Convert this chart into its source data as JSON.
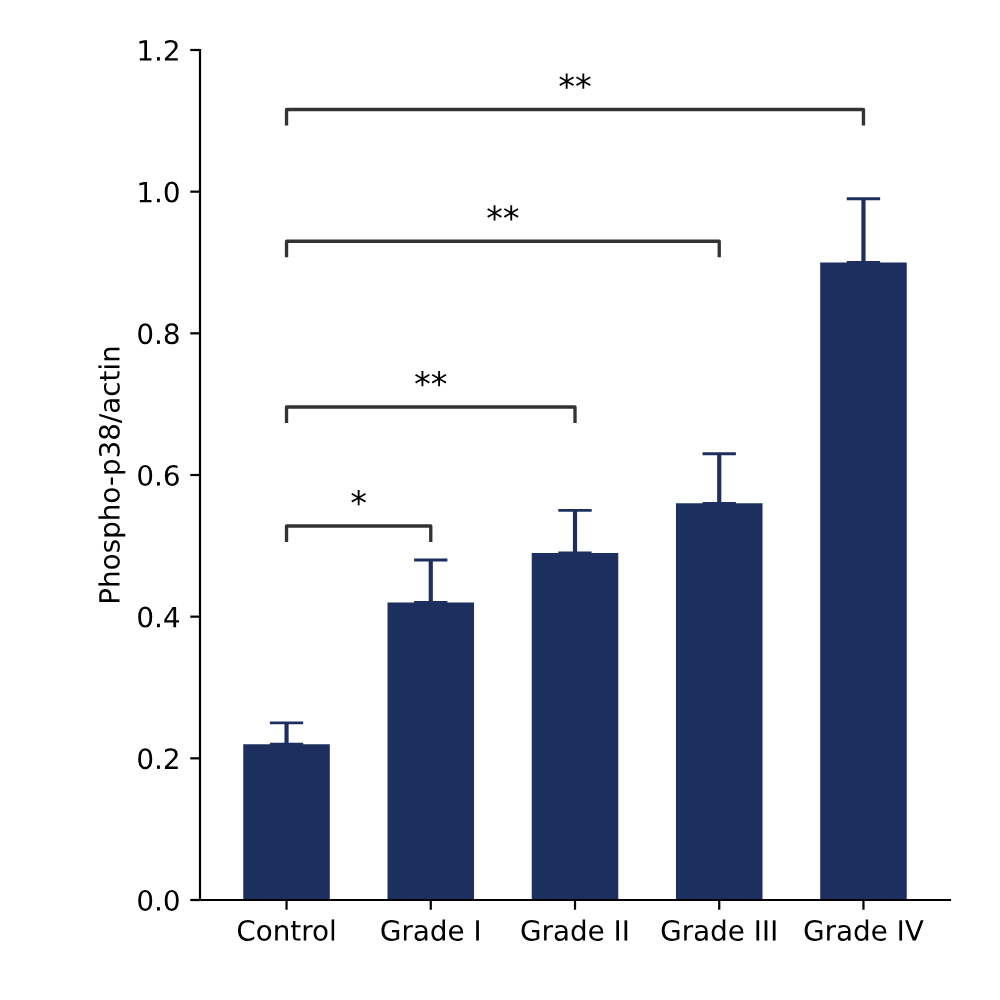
{
  "chart_data": {
    "type": "bar",
    "ylabel": "Phospho-p38/actin",
    "categories": [
      "Control",
      "Grade I",
      "Grade II",
      "Grade III",
      "Grade IV"
    ],
    "values": [
      0.22,
      0.42,
      0.49,
      0.56,
      0.9
    ],
    "errors": [
      [
        0.22,
        0.25
      ],
      [
        0.42,
        0.48
      ],
      [
        0.49,
        0.55
      ],
      [
        0.56,
        0.63
      ],
      [
        0.9,
        0.99
      ]
    ],
    "color": "#1c2f5e",
    "ylim": [
      0,
      1.2
    ],
    "yticks": [
      {
        "value": 0,
        "label": "0.0"
      },
      0.2,
      0.4,
      0.6,
      0.8,
      {
        "value": 1,
        "label": "1.0"
      },
      1.2
    ],
    "grid": false,
    "legend": false,
    "annotations": [
      "*",
      "**",
      "**",
      "**"
    ]
  }
}
